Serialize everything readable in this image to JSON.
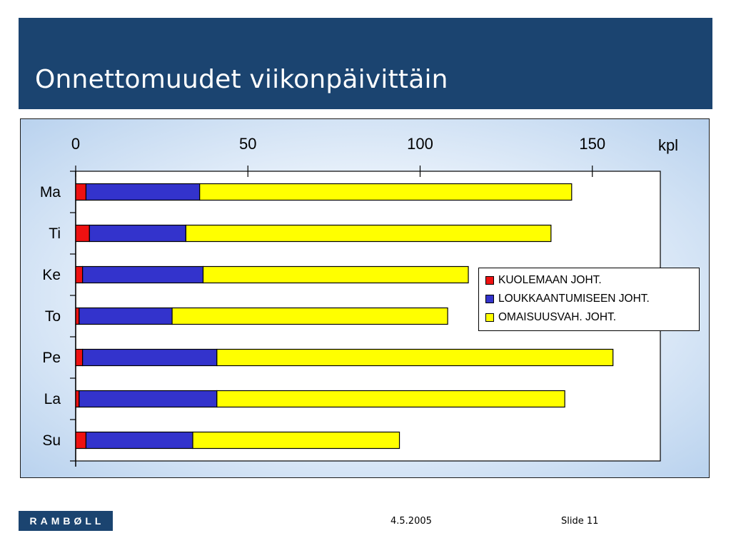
{
  "slide": {
    "title": "Onnettomuudet viikonpäivittäin",
    "logo_text": "RAMBØLL",
    "date": "4.5.2005",
    "slide_number": "Slide 11"
  },
  "chart_data": {
    "type": "bar",
    "orientation": "horizontal",
    "stacked": true,
    "categories": [
      "Ma",
      "Ti",
      "Ke",
      "To",
      "Pe",
      "La",
      "Su"
    ],
    "series": [
      {
        "name": "KUOLEMAAN JOHT.",
        "color": "#ee1111",
        "values": [
          3,
          4,
          2,
          1,
          2,
          1,
          3
        ]
      },
      {
        "name": "LOUKKAANTUMISEEN JOHT.",
        "color": "#3333cc",
        "values": [
          33,
          28,
          35,
          27,
          39,
          40,
          31
        ]
      },
      {
        "name": "OMAISUUSVAH. JOHT.",
        "color": "#ffff00",
        "values": [
          108,
          106,
          77,
          80,
          115,
          101,
          60
        ]
      }
    ],
    "x_ticks": [
      "0",
      "50",
      "100",
      "150"
    ],
    "x_unit_label": "kpl",
    "xlim": [
      0,
      170
    ],
    "axis_position": "top",
    "legend_position": "right",
    "grid": false,
    "title": "",
    "xlabel": "",
    "ylabel": ""
  }
}
